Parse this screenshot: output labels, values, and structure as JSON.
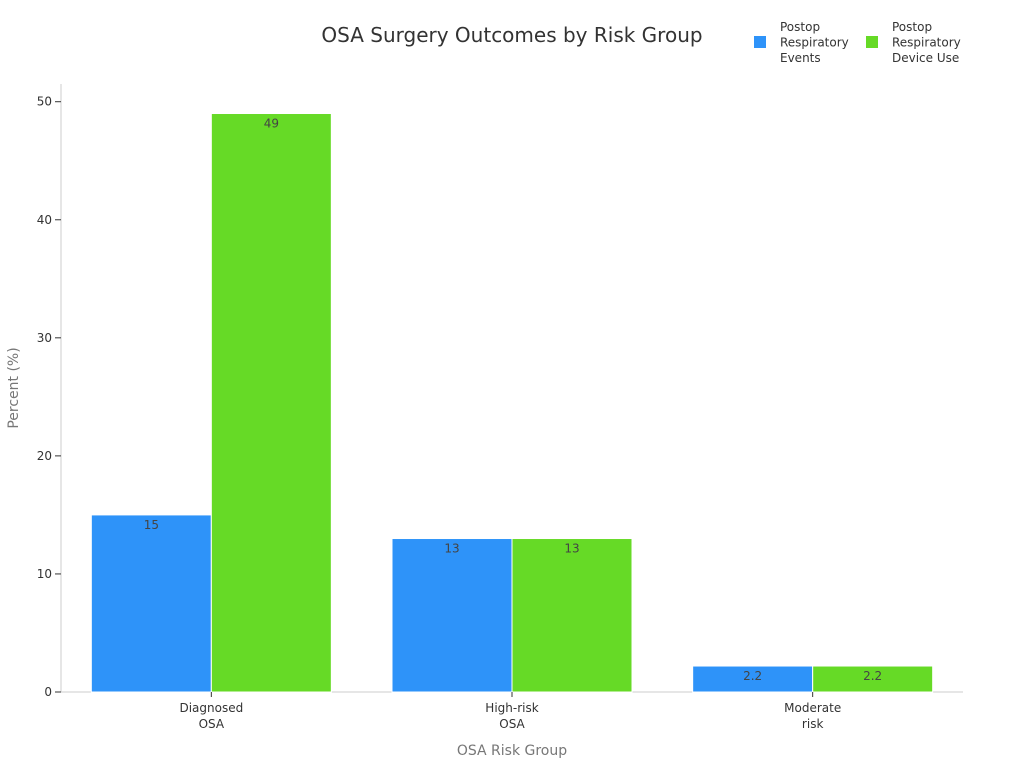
{
  "chart_data": {
    "type": "bar",
    "title": "OSA Surgery Outcomes by Risk Group",
    "xlabel": "OSA Risk Group",
    "ylabel": "Percent (%)",
    "categories": [
      [
        "Diagnosed",
        "OSA"
      ],
      [
        "High-risk",
        "OSA"
      ],
      [
        "Moderate",
        "risk"
      ]
    ],
    "series": [
      {
        "name": [
          "Postop",
          "Respiratory",
          "Events"
        ],
        "values": [
          15,
          13,
          2.2
        ],
        "labels": [
          "15",
          "13",
          "2.2"
        ],
        "color": "#2E93F9"
      },
      {
        "name": [
          "Postop",
          "Respiratory",
          "Device Use"
        ],
        "values": [
          49,
          13,
          2.2
        ],
        "labels": [
          "49",
          "13",
          "2.2"
        ],
        "color": "#66DA26"
      }
    ],
    "ylim": [
      0,
      51.5
    ],
    "yticks": [
      0,
      10,
      20,
      30,
      40,
      50
    ],
    "ytick_labels": [
      "0",
      "10",
      "20",
      "30",
      "40",
      "50"
    ],
    "grid": false,
    "legend_position": "top-right"
  }
}
